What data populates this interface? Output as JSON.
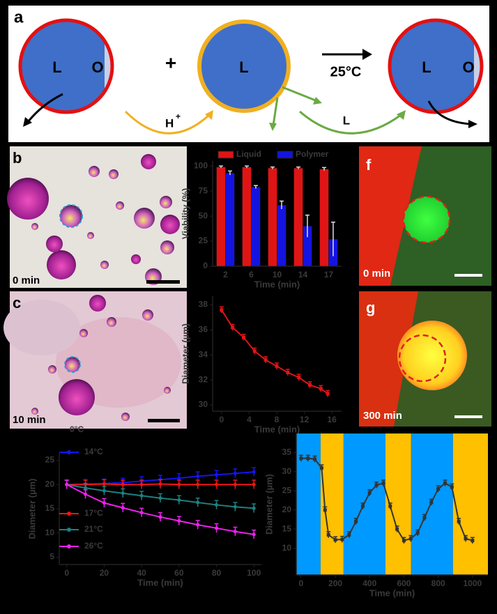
{
  "diagram": {
    "label": "a",
    "left_inner": "L",
    "left_outer": "O",
    "plus": "+",
    "middle": "L",
    "condition": "25°C",
    "right_inner": "L",
    "right_outer": "O",
    "acid": "H",
    "acid_charge": "+",
    "transfer": "L"
  },
  "panels": [
    {
      "letter": "b",
      "time": "0 min"
    },
    {
      "letter": "c",
      "time": "10 min"
    },
    {
      "letter": "f",
      "time": "0 min"
    },
    {
      "letter": "g",
      "time": "300 min"
    }
  ],
  "chart_data": [
    {
      "type": "bar",
      "x_label": "Time (min)",
      "y_label": "Viability (%)",
      "categories": [
        "2",
        "6",
        "10",
        "14",
        "17"
      ],
      "series": [
        {
          "name": "Liquid",
          "color": "#e01414",
          "values": [
            99,
            99,
            98,
            98,
            97
          ],
          "errors": [
            1,
            1,
            1,
            1,
            1.5
          ]
        },
        {
          "name": "Polymer",
          "color": "#1414e0",
          "values": [
            93,
            79,
            61,
            40,
            27
          ],
          "errors": [
            2,
            1.5,
            4,
            11,
            17
          ]
        }
      ],
      "ylim": [
        0,
        105
      ],
      "yticks": [
        0,
        25,
        50,
        75,
        100
      ]
    },
    {
      "type": "line",
      "x_label": "Time (min)",
      "y_label": "Diameter (µm)",
      "color": "#e01414",
      "x": [
        0,
        1.6,
        3.2,
        4.8,
        6.4,
        8,
        9.6,
        11.2,
        12.8,
        14.4,
        15.4
      ],
      "values": [
        37.6,
        36.2,
        35.4,
        34.3,
        33.6,
        33.1,
        32.6,
        32.2,
        31.6,
        31.3,
        30.9
      ],
      "error": 0.25,
      "xlim": [
        -1.3,
        17.4
      ],
      "xticks": [
        0,
        4,
        8,
        12,
        16
      ],
      "ylim": [
        29.5,
        38.7
      ],
      "yticks": [
        30,
        32,
        34,
        36,
        38
      ]
    },
    {
      "type": "line",
      "x_label": "Time (min)",
      "y_label": "Diameter (µm)",
      "annotation": "0°C",
      "x": [
        0,
        10,
        20,
        30,
        40,
        50,
        60,
        70,
        80,
        90,
        100
      ],
      "series": [
        {
          "name": "14°C",
          "color": "#1414f0",
          "error": 0.9,
          "values": [
            20,
            20.1,
            20.2,
            20.4,
            20.7,
            21,
            21.3,
            21.7,
            22,
            22.3,
            22.6
          ]
        },
        {
          "name": "17°C",
          "color": "#f01414",
          "error": 0.9,
          "values": [
            20,
            20,
            20.1,
            20,
            20,
            20.1,
            20,
            20,
            20,
            20,
            20
          ]
        },
        {
          "name": "21°C",
          "color": "#1e8080",
          "error": 0.9,
          "values": [
            20,
            19.3,
            18.7,
            18.2,
            17.7,
            17.2,
            16.8,
            16.3,
            15.8,
            15.4,
            15.1
          ]
        },
        {
          "name": "26°C",
          "color": "#f020f0",
          "error": 0.9,
          "values": [
            20,
            18,
            16.2,
            15.2,
            14.2,
            13.3,
            12.5,
            11.7,
            11,
            10.3,
            9.7
          ]
        }
      ],
      "xlim": [
        -4,
        104
      ],
      "xticks": [
        0,
        20,
        40,
        60,
        80,
        100
      ],
      "ylim": [
        3.5,
        26.5
      ],
      "yticks": [
        5,
        10,
        15,
        20,
        25
      ]
    },
    {
      "type": "line",
      "x_label": "Time (min)",
      "y_label": "Diameter (µm)",
      "color": "#333333",
      "error": 0.8,
      "x": [
        0,
        40,
        80,
        120,
        140,
        160,
        200,
        240,
        280,
        320,
        360,
        400,
        440,
        480,
        520,
        560,
        600,
        640,
        680,
        720,
        760,
        800,
        840,
        880,
        920,
        960,
        1000
      ],
      "values": [
        33.5,
        33.5,
        33.3,
        31,
        20,
        13.5,
        12.2,
        12.3,
        13.5,
        17,
        21,
        24.5,
        26.5,
        27,
        21,
        15,
        12,
        12.5,
        14,
        18,
        22,
        25.5,
        27,
        26,
        17,
        12.5,
        12
      ],
      "bands": [
        {
          "start": -28,
          "end": 114,
          "color": "#0099ff"
        },
        {
          "start": 114,
          "end": 248,
          "color": "#ffc000"
        },
        {
          "start": 248,
          "end": 492,
          "color": "#0099ff"
        },
        {
          "start": 492,
          "end": 642,
          "color": "#ffc000"
        },
        {
          "start": 642,
          "end": 886,
          "color": "#0099ff"
        },
        {
          "start": 886,
          "end": 1090,
          "color": "#ffc000"
        }
      ],
      "xlim": [
        -28,
        1090
      ],
      "xticks": [
        0,
        200,
        400,
        600,
        800,
        1000
      ],
      "ylim": [
        3,
        40
      ],
      "yticks": [
        10,
        15,
        20,
        25,
        30,
        35
      ]
    }
  ]
}
